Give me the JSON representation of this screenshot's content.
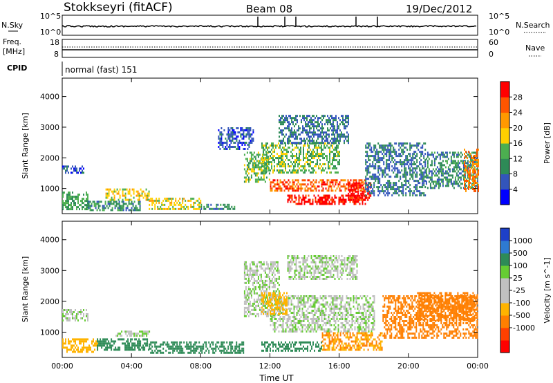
{
  "header": {
    "title": "Stokkseyri (fitACF)",
    "beam": "Beam 08",
    "date": "19/Dec/2012"
  },
  "panels": {
    "nsky": {
      "label": "N.Sky",
      "ticks_left": [
        "10^5",
        "10^0"
      ],
      "ticks_right": [
        "10^5",
        "10^0"
      ],
      "right_label": "N.Search"
    },
    "freq": {
      "label_line1": "Freq.",
      "label_line2": "[MHz]",
      "ticks_left": [
        "18",
        "8"
      ],
      "ticks_right": [
        "60",
        "0"
      ],
      "right_label": "Nave"
    },
    "cpid": {
      "label": "CPID",
      "text": "normal (fast) 151"
    }
  },
  "colors": {
    "power": [
      "#0000ff",
      "#3355bb",
      "#2e8b57",
      "#4caf50",
      "#ffd000",
      "#ff9900",
      "#ff5500",
      "#ff0000"
    ],
    "velocity": [
      "#1e40c8",
      "#2e7ad1",
      "#2e8b57",
      "#66cc33",
      "#c0c0c0",
      "#c0c0c0",
      "#ffb300",
      "#ff7f00",
      "#ff4000",
      "#ff0000"
    ]
  },
  "chart_data": [
    {
      "type": "heatmap",
      "title": "",
      "xlabel": "Time UT",
      "ylabel": "Slant Range [km]",
      "xlim": [
        "00:00",
        "24:00"
      ],
      "ylim": [
        180,
        4600
      ],
      "x_ticks": [
        "00:00",
        "04:00",
        "08:00",
        "12:00",
        "16:00",
        "20:00",
        "00:00"
      ],
      "y_ticks": [
        1000,
        2000,
        3000,
        4000
      ],
      "colorbar": {
        "label": "Power [dB]",
        "ticks": [
          4,
          8,
          12,
          16,
          20,
          24,
          28
        ],
        "range": [
          0,
          32
        ]
      },
      "regions": [
        {
          "t": [
            0.0,
            1.2
          ],
          "r": [
            1500,
            1750
          ],
          "v": 6
        },
        {
          "t": [
            0.0,
            1.5
          ],
          "r": [
            300,
            900
          ],
          "v": 12
        },
        {
          "t": [
            1.5,
            4.5
          ],
          "r": [
            300,
            600
          ],
          "v": 10
        },
        {
          "t": [
            2.5,
            5.0
          ],
          "r": [
            650,
            1000
          ],
          "v": 18
        },
        {
          "t": [
            5.0,
            8.0
          ],
          "r": [
            300,
            700
          ],
          "v": 18
        },
        {
          "t": [
            8.0,
            10.0
          ],
          "r": [
            300,
            500
          ],
          "v": 10
        },
        {
          "t": [
            9.0,
            11.0
          ],
          "r": [
            2300,
            3000
          ],
          "v": 6
        },
        {
          "t": [
            10.5,
            12.0
          ],
          "r": [
            1200,
            2200
          ],
          "v": 14
        },
        {
          "t": [
            11.5,
            16.0
          ],
          "r": [
            1500,
            2500
          ],
          "v": 14
        },
        {
          "t": [
            12.0,
            17.5
          ],
          "r": [
            900,
            1300
          ],
          "v": 26
        },
        {
          "t": [
            13.0,
            17.5
          ],
          "r": [
            500,
            800
          ],
          "v": 30
        },
        {
          "t": [
            16.5,
            17.8
          ],
          "r": [
            600,
            1200
          ],
          "v": 30
        },
        {
          "t": [
            12.5,
            16.5
          ],
          "r": [
            2500,
            3400
          ],
          "v": 8
        },
        {
          "t": [
            17.5,
            21.0
          ],
          "r": [
            800,
            2500
          ],
          "v": 8
        },
        {
          "t": [
            21.0,
            24.0
          ],
          "r": [
            1000,
            2200
          ],
          "v": 10
        },
        {
          "t": [
            23.2,
            24.0
          ],
          "r": [
            900,
            2300
          ],
          "v": 24
        }
      ]
    },
    {
      "type": "heatmap",
      "title": "",
      "xlabel": "Time UT",
      "ylabel": "Slant Range [km]",
      "xlim": [
        "00:00",
        "24:00"
      ],
      "ylim": [
        180,
        4600
      ],
      "x_ticks": [
        "00:00",
        "04:00",
        "08:00",
        "12:00",
        "16:00",
        "20:00",
        "00:00"
      ],
      "y_ticks": [
        1000,
        2000,
        3000,
        4000
      ],
      "colorbar": {
        "label": "Velocity [m s^-1]",
        "ticks": [
          1000,
          500,
          100,
          25,
          -25,
          -100,
          -500,
          -1000
        ]
      },
      "regions": [
        {
          "t": [
            0.0,
            1.5
          ],
          "r": [
            1400,
            1750
          ],
          "v": 0
        },
        {
          "t": [
            0.0,
            2.0
          ],
          "r": [
            350,
            800
          ],
          "v": -200
        },
        {
          "t": [
            2.0,
            5.0
          ],
          "r": [
            400,
            800
          ],
          "v": 120
        },
        {
          "t": [
            3.0,
            5.0
          ],
          "r": [
            900,
            1050
          ],
          "v": 0
        },
        {
          "t": [
            5.0,
            10.5
          ],
          "r": [
            300,
            700
          ],
          "v": 110
        },
        {
          "t": [
            10.5,
            12.5
          ],
          "r": [
            1500,
            3300
          ],
          "v": 0
        },
        {
          "t": [
            12.0,
            18.0
          ],
          "r": [
            1000,
            2200
          ],
          "v": 0
        },
        {
          "t": [
            11.5,
            13.0
          ],
          "r": [
            1600,
            2300
          ],
          "v": -200
        },
        {
          "t": [
            11.5,
            15.0
          ],
          "r": [
            400,
            700
          ],
          "v": 120
        },
        {
          "t": [
            15.0,
            18.5
          ],
          "r": [
            400,
            1000
          ],
          "v": -300
        },
        {
          "t": [
            18.5,
            24.0
          ],
          "r": [
            800,
            2200
          ],
          "v": -400
        },
        {
          "t": [
            20.5,
            24.0
          ],
          "r": [
            1400,
            2300
          ],
          "v": -700
        },
        {
          "t": [
            13.0,
            17.0
          ],
          "r": [
            2700,
            3500
          ],
          "v": 0
        }
      ]
    }
  ]
}
